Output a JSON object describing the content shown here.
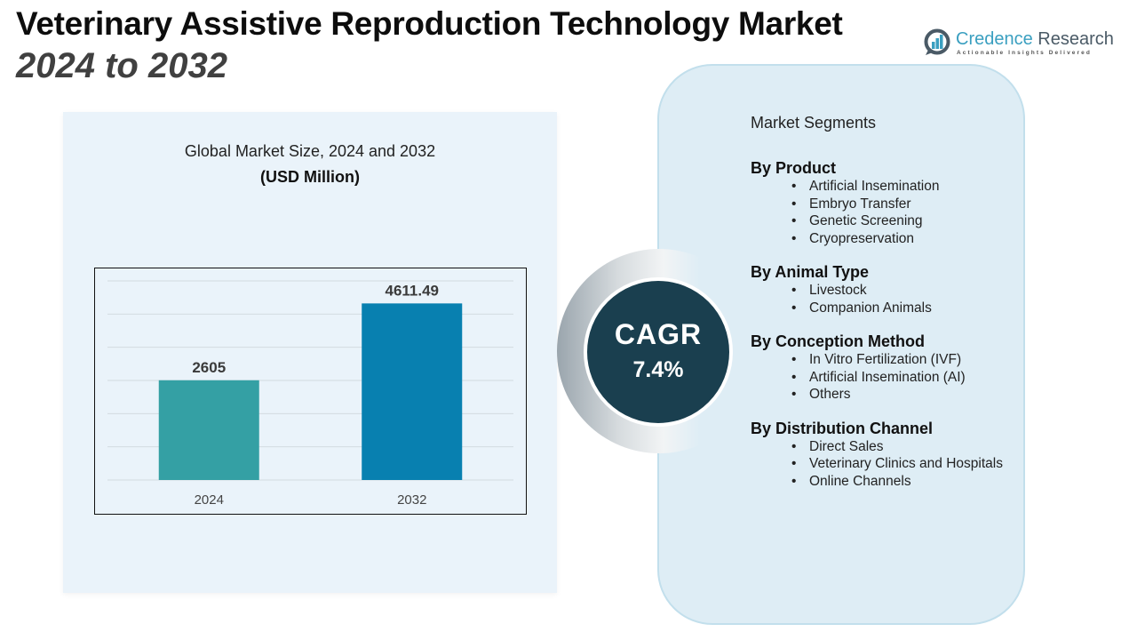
{
  "header": {
    "title_line1": "Veterinary Assistive Reproduction Technology Market",
    "title_line2": "2024 to 2032"
  },
  "logo": {
    "icon": "bar-chart-magnifier-icon",
    "name_part1": "Credence",
    "name_part2": " Research",
    "tagline": "Actionable Insights Delivered",
    "brand_color": "#3a9fc0"
  },
  "chart_panel": {
    "heading": "Global Market Size, 2024 and 2032",
    "subheading": "(USD Million)"
  },
  "chart_data": {
    "type": "bar",
    "title": "Global Market Size, 2024 and 2032",
    "subtitle": "(USD Million)",
    "categories": [
      "2024",
      "2032"
    ],
    "values": [
      2605,
      4611.49
    ],
    "data_labels": [
      "2605",
      "4611.49"
    ],
    "colors": [
      "#34a0a4",
      "#0880b0"
    ],
    "xlabel": "",
    "ylabel": "",
    "ylim": [
      0,
      5200
    ],
    "gridlines": 6,
    "grid": true,
    "legend": "none"
  },
  "cagr": {
    "label": "CAGR",
    "value": "7.4%",
    "color": "#1a3f4f"
  },
  "segments": {
    "title": "Market Segments",
    "groups": [
      {
        "title": "By Product",
        "items": [
          "Artificial Insemination",
          "Embryo Transfer",
          "Genetic Screening",
          "Cryopreservation"
        ]
      },
      {
        "title": "By Animal Type",
        "items": [
          "Livestock",
          "Companion Animals"
        ]
      },
      {
        "title": "By Conception Method",
        "items": [
          "In Vitro Fertilization (IVF)",
          "Artificial Insemination (AI)",
          "Others"
        ]
      },
      {
        "title": "By Distribution Channel",
        "items": [
          "Direct Sales",
          "Veterinary Clinics and Hospitals",
          "Online Channels"
        ]
      }
    ]
  }
}
